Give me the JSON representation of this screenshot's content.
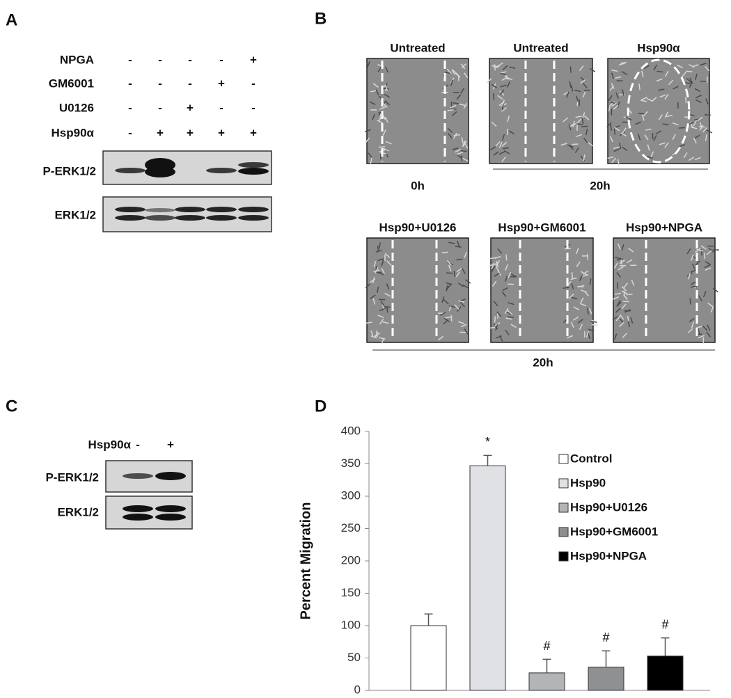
{
  "panel_labels": [
    "A",
    "B",
    "C",
    "D"
  ],
  "panel_a": {
    "treatments": [
      {
        "name": "NPGA",
        "signs": [
          "-",
          "-",
          "-",
          "-",
          "+"
        ]
      },
      {
        "name": "GM6001",
        "signs": [
          "-",
          "-",
          "-",
          "+",
          "-"
        ]
      },
      {
        "name": "U0126",
        "signs": [
          "-",
          "-",
          "+",
          "-",
          "-"
        ]
      },
      {
        "name": "Hsp90α",
        "signs": [
          "-",
          "+",
          "+",
          "+",
          "+"
        ]
      }
    ],
    "blots": [
      "P-ERK1/2",
      "ERK1/2"
    ]
  },
  "panel_b": {
    "top_images": [
      "Untreated",
      "Untreated",
      "Hsp90α"
    ],
    "top_times": [
      "0h",
      "20h"
    ],
    "bottom_images": [
      "Hsp90+U0126",
      "Hsp90+GM6001",
      "Hsp90+NPGA"
    ],
    "bottom_time": "20h"
  },
  "panel_c": {
    "treatment": {
      "name": "Hsp90α",
      "signs": [
        "-",
        "+"
      ]
    },
    "blots": [
      "P-ERK1/2",
      "ERK1/2"
    ]
  },
  "chart_data": {
    "type": "bar",
    "y_label": "Percent Migration",
    "ylim": [
      0,
      400
    ],
    "yticks": [
      0,
      50,
      100,
      150,
      200,
      250,
      300,
      350,
      400
    ],
    "series": [
      {
        "name": "Control",
        "color": "#ffffff",
        "values": [
          100
        ],
        "errors": [
          18
        ]
      },
      {
        "name": "Hsp90",
        "color": "#e0e1e4",
        "values": [
          347
        ],
        "errors": [
          16
        ],
        "annotation": "*"
      },
      {
        "name": "Hsp90+U0126",
        "color": "#b3b4b6",
        "values": [
          27
        ],
        "errors": [
          21
        ],
        "annotation": "#"
      },
      {
        "name": "Hsp90+GM6001",
        "color": "#8f9091",
        "values": [
          36
        ],
        "errors": [
          25
        ],
        "annotation": "#"
      },
      {
        "name": "Hsp90+NPGA",
        "color": "#000000",
        "values": [
          53
        ],
        "errors": [
          28
        ],
        "annotation": "#"
      }
    ]
  }
}
